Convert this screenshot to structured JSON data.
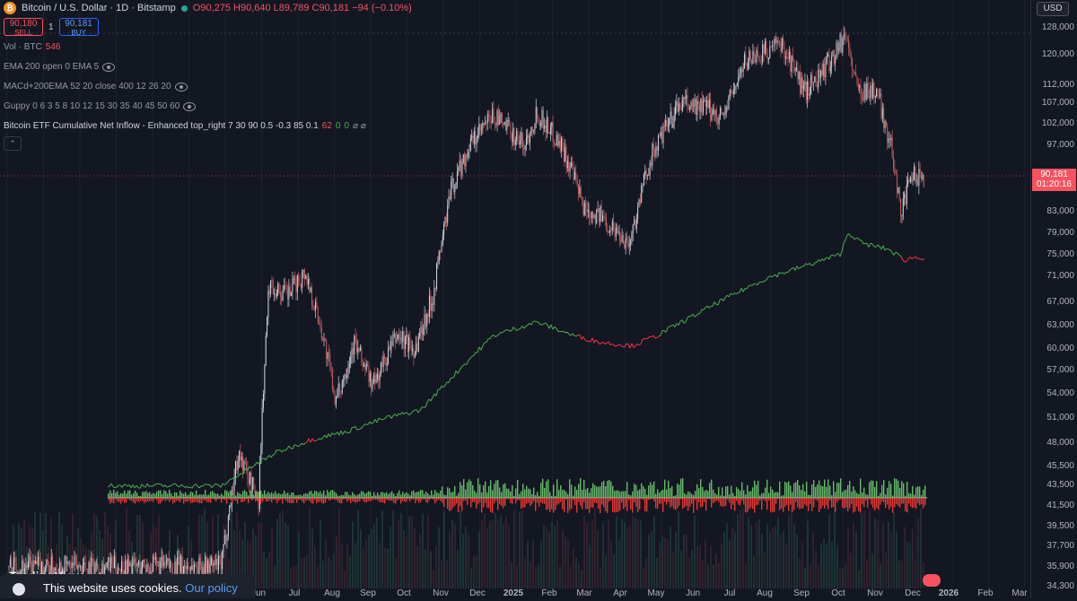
{
  "symbol": {
    "logo": "₿",
    "title": "Bitcoin / U.S. Dollar · 1D · Bitstamp",
    "ohlc": "O90,275 H90,640 L89,789 C90,181 −94 (−0.10%)"
  },
  "trade": {
    "sell_price": "90,180",
    "sell_label": "SELL",
    "spread": "1",
    "buy_price": "90,181",
    "buy_label": "BUY"
  },
  "indicators": [
    {
      "label": "Vol · BTC",
      "value": "546"
    },
    {
      "label": "EMA 200 open 0 EMA 5"
    },
    {
      "label": "MACd+200EMA 52 20 close 400 12 26 20"
    },
    {
      "label": "Guppy 0 6 3 5 8 10 12 15 30 35 40 45 50 60"
    },
    {
      "label": "Bitcoin ETF Cumulative Net Inflow - Enhanced top_right 7 30 90 0.5 -0.3 85 0.1",
      "v1": "62",
      "v2": "0",
      "v3": "0",
      "v4": "⌀ ⌀"
    }
  ],
  "collapse_icon": "chevron-up-icon",
  "price_axis": {
    "currency": "USD",
    "ticks": [
      "128,000",
      "120,000",
      "112,000",
      "107,000",
      "102,000",
      "97,000",
      "83,000",
      "79,000",
      "75,000",
      "71,000",
      "67,000",
      "63,000",
      "60,000",
      "57,000",
      "54,000",
      "51,000",
      "48,000",
      "45,500",
      "43,500",
      "41,500",
      "39,500",
      "37,700",
      "35,900",
      "34,300"
    ],
    "last_price": "90,181",
    "countdown": "01:20:16"
  },
  "time_axis": [
    "Jun",
    "Jul",
    "Aug",
    "Sep",
    "Oct",
    "Nov",
    "Dec",
    "2025",
    "Feb",
    "Mar",
    "Apr",
    "May",
    "Jun",
    "Jul",
    "Aug",
    "Sep",
    "Oct",
    "Nov",
    "Dec",
    "2026",
    "Feb",
    "Mar"
  ],
  "cookie": {
    "text": "This website uses cookies.",
    "link": "Our policy"
  },
  "watermark": "TradingView",
  "colors": {
    "bull": "#26a69a",
    "bear": "#f7525f",
    "candle_up": "#d1d4dc",
    "candle_down": "#c06060",
    "etf_line": "#4caf50",
    "etf_neg": "#f23645",
    "hist_pos": "#66bb6a",
    "hist_neg": "#e53935",
    "background": "#131722"
  },
  "chart_data": {
    "type": "candlestick",
    "series_name": "BTCUSD",
    "approx_close_path": [
      [
        "2024-05",
        36000
      ],
      [
        "2024-05-15",
        47000
      ],
      [
        "2024-06-01",
        42000
      ],
      [
        "2024-06-10",
        70000
      ],
      [
        "2024-06-25",
        68000
      ],
      [
        "2024-07-10",
        72000
      ],
      [
        "2024-07-25",
        62000
      ],
      [
        "2024-08-05",
        53000
      ],
      [
        "2024-08-20",
        61000
      ],
      [
        "2024-09-05",
        55000
      ],
      [
        "2024-09-25",
        62000
      ],
      [
        "2024-10-10",
        60000
      ],
      [
        "2024-10-25",
        68000
      ],
      [
        "2024-11-10",
        88000
      ],
      [
        "2024-11-25",
        97000
      ],
      [
        "2024-12-15",
        104000
      ],
      [
        "2025-01-10",
        97000
      ],
      [
        "2025-01-20",
        105000
      ],
      [
        "2025-02-10",
        97000
      ],
      [
        "2025-02-28",
        84000
      ],
      [
        "2025-03-15",
        82000
      ],
      [
        "2025-04-08",
        77000
      ],
      [
        "2025-04-25",
        94000
      ],
      [
        "2025-05-20",
        107000
      ],
      [
        "2025-06-10",
        106000
      ],
      [
        "2025-06-25",
        104000
      ],
      [
        "2025-07-15",
        119000
      ],
      [
        "2025-08-14",
        123000
      ],
      [
        "2025-09-01",
        110000
      ],
      [
        "2025-09-20",
        117000
      ],
      [
        "2025-10-06",
        126000
      ],
      [
        "2025-10-15",
        111000
      ],
      [
        "2025-11-01",
        110000
      ],
      [
        "2025-11-15",
        94000
      ],
      [
        "2025-11-21",
        83000
      ],
      [
        "2025-12-01",
        90181
      ]
    ],
    "etf_cumulative_path": [
      [
        "2024-05",
        43500
      ],
      [
        "2024-06-15",
        47000
      ],
      [
        "2024-07-15",
        48500
      ],
      [
        "2024-08-15",
        49500
      ],
      [
        "2024-09-15",
        51000
      ],
      [
        "2024-10-15",
        52000
      ],
      [
        "2024-11-15",
        57000
      ],
      [
        "2024-12-15",
        62000
      ],
      [
        "2025-01-20",
        64000
      ],
      [
        "2025-02-20",
        62000
      ],
      [
        "2025-03-15",
        61000
      ],
      [
        "2025-04-10",
        60500
      ],
      [
        "2025-05-01",
        62000
      ],
      [
        "2025-06-01",
        65000
      ],
      [
        "2025-07-01",
        68000
      ],
      [
        "2025-08-01",
        71000
      ],
      [
        "2025-09-01",
        73000
      ],
      [
        "2025-10-01",
        75000
      ],
      [
        "2025-10-08",
        79000
      ],
      [
        "2025-10-20",
        77000
      ],
      [
        "2025-11-10",
        76000
      ],
      [
        "2025-11-25",
        74000
      ],
      [
        "2025-12-01",
        74500
      ]
    ],
    "y_scale": "log",
    "ylim": [
      34300,
      128000
    ]
  }
}
